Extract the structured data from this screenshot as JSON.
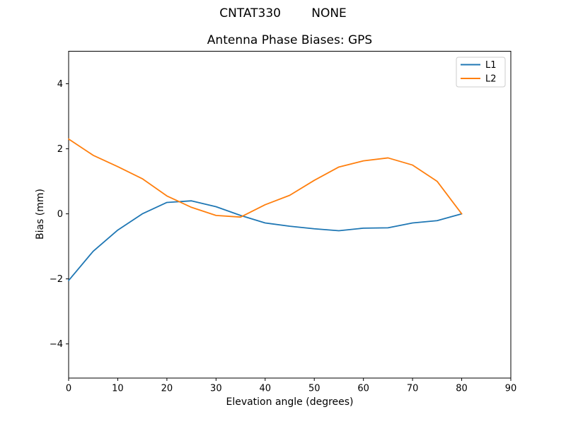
{
  "header": {
    "suptitle": "CNTAT330        NONE",
    "title": "Antenna Phase Biases: GPS"
  },
  "chart_data": {
    "type": "line",
    "suptitle": "CNTAT330        NONE",
    "title": "Antenna Phase Biases: GPS",
    "xlabel": "Elevation angle (degrees)",
    "ylabel": "Bias (mm)",
    "xlim": [
      0,
      90
    ],
    "ylim": [
      -5.05,
      5.0
    ],
    "xticks": [
      0,
      10,
      20,
      30,
      40,
      50,
      60,
      70,
      80,
      90
    ],
    "yticks": [
      -4,
      -2,
      0,
      2,
      4
    ],
    "grid": false,
    "legend": {
      "position": "upper right",
      "entries": [
        "L1",
        "L2"
      ]
    },
    "x": [
      0,
      5,
      10,
      15,
      20,
      25,
      30,
      35,
      40,
      45,
      50,
      55,
      60,
      65,
      70,
      75,
      80
    ],
    "series": [
      {
        "name": "L1",
        "color": "#1f77b4",
        "values": [
          -2.05,
          -1.15,
          -0.5,
          0.0,
          0.35,
          0.4,
          0.22,
          -0.05,
          -0.28,
          -0.38,
          -0.46,
          -0.52,
          -0.44,
          -0.43,
          -0.28,
          -0.21,
          0.0
        ]
      },
      {
        "name": "L2",
        "color": "#ff7f0e",
        "values": [
          2.3,
          1.8,
          1.45,
          1.08,
          0.55,
          0.2,
          -0.05,
          -0.1,
          0.28,
          0.57,
          1.03,
          1.44,
          1.63,
          1.72,
          1.5,
          1.0,
          0.0
        ]
      }
    ],
    "axis_color": "#000000",
    "text_color": "#000000",
    "legend_border_color": "#cccccc",
    "background_color": "#ffffff"
  }
}
